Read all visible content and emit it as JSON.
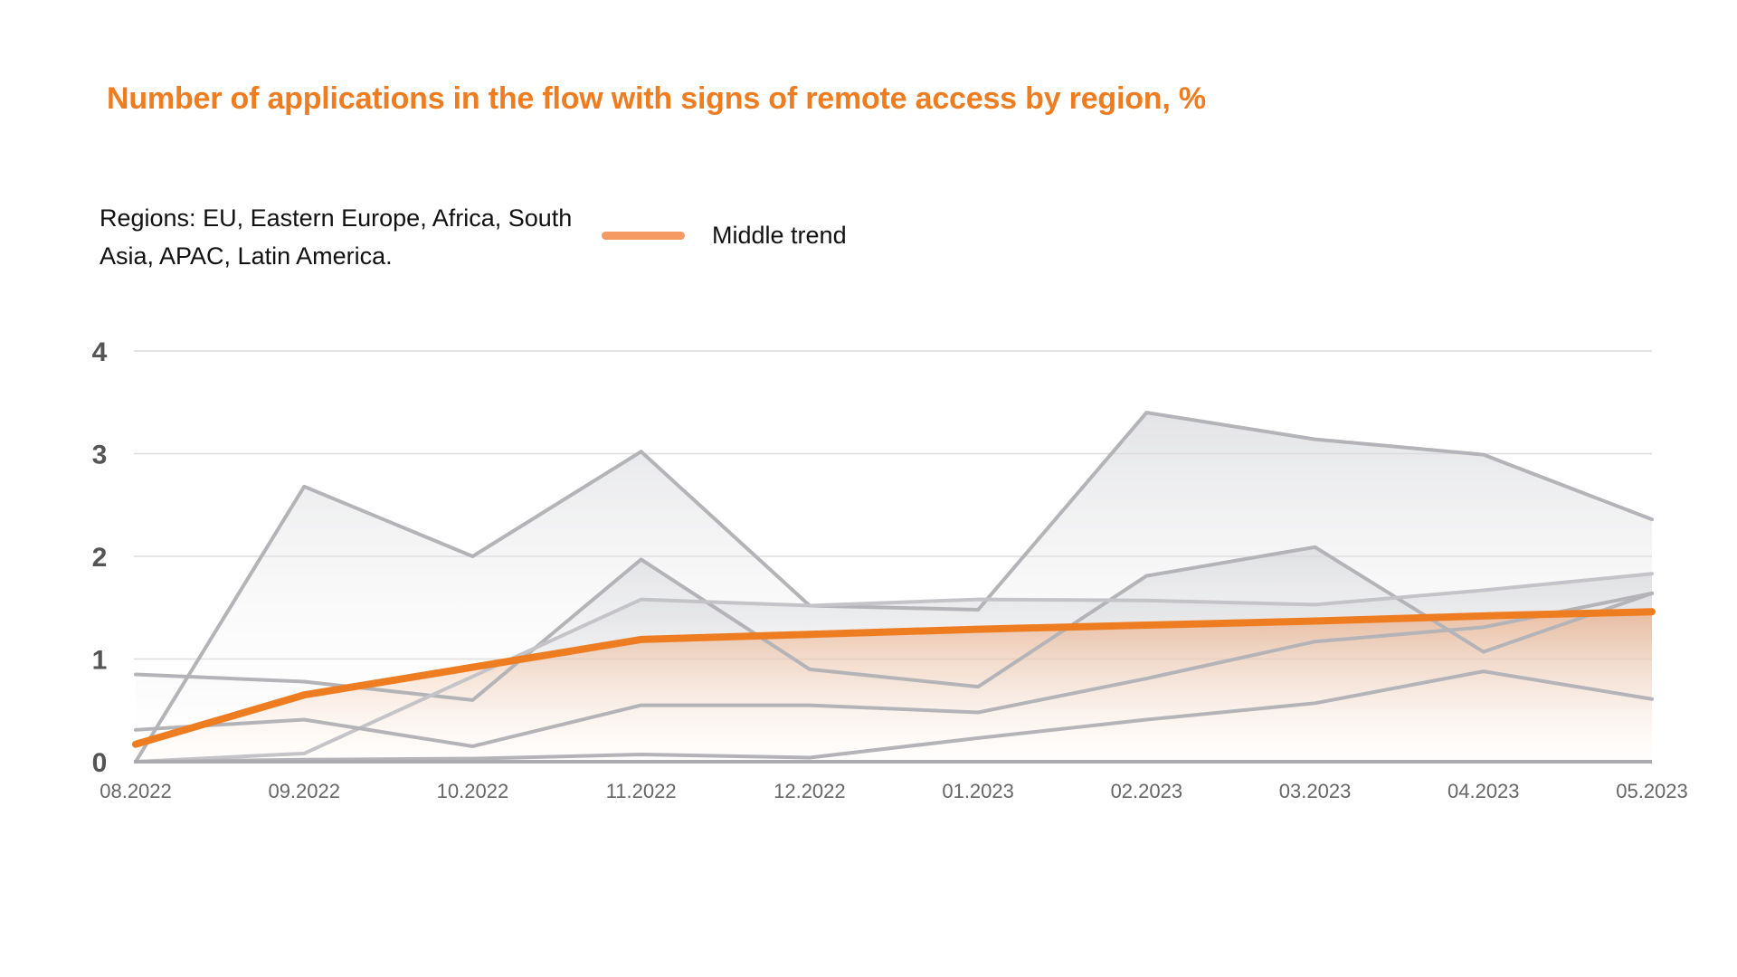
{
  "chart_data": {
    "type": "line",
    "title": "Number of applications in the flow with signs of remote access by region, %",
    "note": "Regions: EU, Eastern Europe, Africa, South Asia, APAC, Latin America.",
    "legend": [
      {
        "label": "Middle trend",
        "color": "#f59a62"
      }
    ],
    "categories": [
      "08.2022",
      "09.2022",
      "10.2022",
      "11.2022",
      "12.2022",
      "01.2023",
      "02.2023",
      "03.2023",
      "04.2023",
      "05.2023"
    ],
    "ylim": [
      0,
      4
    ],
    "yticks": [
      0,
      1,
      2,
      3,
      4
    ],
    "grid": true,
    "series": [
      {
        "values": [
          0.0,
          2.68,
          2.0,
          3.02,
          1.52,
          1.48,
          3.4,
          3.14,
          2.99,
          2.36
        ],
        "color": "#b4b4b8",
        "filled": true
      },
      {
        "values": [
          0.85,
          0.78,
          0.6,
          1.97,
          0.9,
          0.73,
          1.81,
          2.09,
          1.07,
          1.64
        ],
        "color": "#b4b4b8",
        "filled": true
      },
      {
        "values": [
          0.0,
          0.08,
          0.83,
          1.58,
          1.52,
          1.58,
          1.57,
          1.53,
          1.67,
          1.83
        ],
        "color": "#c4c4c8",
        "filled": true
      },
      {
        "values": [
          0.31,
          0.41,
          0.15,
          0.55,
          0.55,
          0.48,
          0.81,
          1.17,
          1.31,
          1.64
        ],
        "color": "#b4b4b8",
        "filled": false
      },
      {
        "values": [
          0.0,
          0.02,
          0.03,
          0.07,
          0.04,
          0.23,
          0.41,
          0.57,
          0.88,
          0.61
        ],
        "color": "#b4b4b8",
        "filled": false
      },
      {
        "name": "Middle trend",
        "values": [
          0.17,
          0.65,
          0.92,
          1.19,
          1.24,
          1.29,
          1.33,
          1.37,
          1.42,
          1.46
        ],
        "color": "#ee7d22",
        "filled": true,
        "trend": true
      }
    ]
  }
}
